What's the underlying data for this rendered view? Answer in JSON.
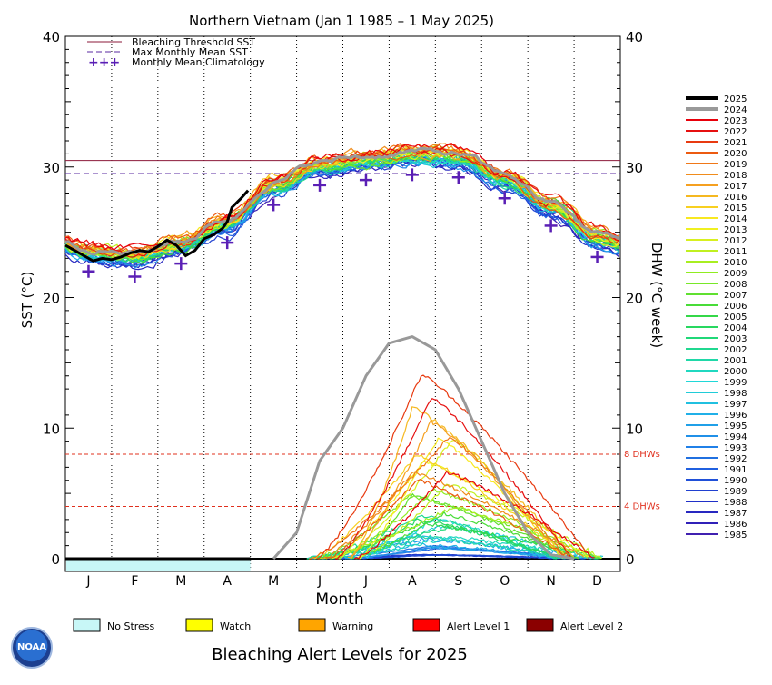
{
  "title": "Northern Vietnam      (Jan 1 1985 – 1 May 2025)",
  "legend_top": [
    {
      "label": "Bleaching Threshold SST",
      "style": "solid",
      "color": "#8b1a3a"
    },
    {
      "label": "Max Monthly Mean SST",
      "style": "dashed",
      "color": "#5a2aa0"
    },
    {
      "label": "Monthly Mean Climatology",
      "style": "plus",
      "color": "#5a1fb5",
      "symbol": "+++"
    }
  ],
  "footer_title": "Bleaching Alert Levels for 2025",
  "alert_legend": [
    {
      "label": "No Stress",
      "color": "#c8f7f7"
    },
    {
      "label": "Watch",
      "color": "#ffff00"
    },
    {
      "label": "Warning",
      "color": "#ffa500"
    },
    {
      "label": "Alert Level 1",
      "color": "#ff0000"
    },
    {
      "label": "Alert Level 2",
      "color": "#8b0000"
    }
  ],
  "logo_text": "NOAA",
  "chart_data": {
    "type": "line",
    "xlabel": "Month",
    "ylabel_left": "SST (°C)",
    "ylabel_right": "DHW (°C week)",
    "months": [
      "J",
      "F",
      "M",
      "A",
      "M",
      "J",
      "J",
      "A",
      "S",
      "O",
      "N",
      "D"
    ],
    "ylim": [
      0,
      40
    ],
    "yticks": [
      0,
      10,
      20,
      30,
      40
    ],
    "bleaching_threshold_sst": 30.5,
    "max_monthly_mean_sst": 29.5,
    "dhw_lines": [
      {
        "label": "8 DHWs",
        "value": 8
      },
      {
        "label": "4 DHWs",
        "value": 4
      }
    ],
    "climatology": {
      "months": [
        "J",
        "F",
        "M",
        "A",
        "M",
        "J",
        "J",
        "A",
        "S",
        "O",
        "N",
        "D"
      ],
      "values": [
        22.0,
        21.6,
        22.6,
        24.2,
        27.1,
        28.6,
        29.0,
        29.4,
        29.2,
        27.6,
        25.5,
        23.1
      ]
    },
    "year_colors": [
      {
        "year": "2025",
        "color": "#000000"
      },
      {
        "year": "2024",
        "color": "#999999"
      },
      {
        "year": "2023",
        "color": "#e8000b"
      },
      {
        "year": "2022",
        "color": "#e61010"
      },
      {
        "year": "2021",
        "color": "#e83a10"
      },
      {
        "year": "2020",
        "color": "#ec5a10"
      },
      {
        "year": "2019",
        "color": "#f07818"
      },
      {
        "year": "2018",
        "color": "#f08c1c"
      },
      {
        "year": "2017",
        "color": "#f5a020"
      },
      {
        "year": "2016",
        "color": "#f5b820"
      },
      {
        "year": "2015",
        "color": "#f8d020"
      },
      {
        "year": "2014",
        "color": "#f8e820"
      },
      {
        "year": "2013",
        "color": "#f0f020"
      },
      {
        "year": "2012",
        "color": "#d8f020"
      },
      {
        "year": "2011",
        "color": "#c0f020"
      },
      {
        "year": "2010",
        "color": "#a8ee20"
      },
      {
        "year": "2009",
        "color": "#90ec20"
      },
      {
        "year": "2008",
        "color": "#78e828"
      },
      {
        "year": "2007",
        "color": "#60e030"
      },
      {
        "year": "2006",
        "color": "#48dc38"
      },
      {
        "year": "2005",
        "color": "#34d848"
      },
      {
        "year": "2004",
        "color": "#28d860"
      },
      {
        "year": "2003",
        "color": "#20d878"
      },
      {
        "year": "2002",
        "color": "#20d890"
      },
      {
        "year": "2001",
        "color": "#20d8a8"
      },
      {
        "year": "2000",
        "color": "#20d8c0"
      },
      {
        "year": "1999",
        "color": "#20d8d8"
      },
      {
        "year": "1998",
        "color": "#20ccd8"
      },
      {
        "year": "1997",
        "color": "#20c0e0"
      },
      {
        "year": "1996",
        "color": "#20b0e8"
      },
      {
        "year": "1995",
        "color": "#20a0e8"
      },
      {
        "year": "1994",
        "color": "#2090e8"
      },
      {
        "year": "1993",
        "color": "#2080e8"
      },
      {
        "year": "1992",
        "color": "#2070e0"
      },
      {
        "year": "1991",
        "color": "#2060e0"
      },
      {
        "year": "1990",
        "color": "#2050d8"
      },
      {
        "year": "1989",
        "color": "#2040d0"
      },
      {
        "year": "1988",
        "color": "#2030c8"
      },
      {
        "year": "1987",
        "color": "#2828c0"
      },
      {
        "year": "1986",
        "color": "#3020b8"
      },
      {
        "year": "1985",
        "color": "#4020b0"
      }
    ],
    "sst_2025": {
      "x_month": [
        0.0,
        0.2,
        0.4,
        0.6,
        0.8,
        1.0,
        1.2,
        1.4,
        1.6,
        1.8,
        2.0,
        2.2,
        2.4,
        2.6,
        2.8,
        3.0,
        3.2,
        3.4,
        3.5,
        3.6,
        3.8,
        3.95
      ],
      "values": [
        24.0,
        23.6,
        23.2,
        22.8,
        23.0,
        22.9,
        23.1,
        23.4,
        23.6,
        23.5,
        23.9,
        24.4,
        24.0,
        23.2,
        23.6,
        24.5,
        24.8,
        25.3,
        25.8,
        26.9,
        27.6,
        28.2
      ]
    },
    "dhw_2024": {
      "x_month": [
        4.5,
        5.0,
        5.5,
        6.0,
        6.5,
        7.0,
        7.5,
        8.0,
        8.5,
        9.0,
        9.5,
        10.0,
        10.5,
        11.0
      ],
      "values": [
        0,
        2,
        7.5,
        10,
        14,
        16.5,
        17.0,
        16.0,
        13.0,
        9.0,
        5.0,
        2.0,
        0.3,
        0
      ]
    },
    "dhw_2025": {
      "x_month": [
        0,
        4.0
      ],
      "values": [
        0,
        0
      ]
    },
    "alert_2025": {
      "no_stress_until_month": 4.0
    }
  }
}
